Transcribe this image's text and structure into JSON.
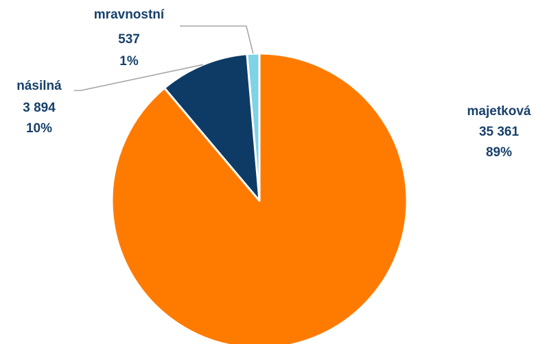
{
  "chart_data": {
    "type": "pie",
    "title": "",
    "slices": [
      {
        "name": "mravnostní",
        "value": "537",
        "percent": "1%",
        "color": "#7fd3e6"
      },
      {
        "name": "násilná",
        "value": "3 894",
        "percent": "10%",
        "color": "#0d3b66"
      },
      {
        "name": "majetková",
        "value": "35 361",
        "percent": "89%",
        "color": "#ff7b00"
      }
    ],
    "values": [
      537,
      3894,
      35361
    ],
    "start_angle": "12 o'clock",
    "direction": "counterclockwise",
    "leader_line_color": "#a6a6a6",
    "label_color": "#17406b"
  }
}
